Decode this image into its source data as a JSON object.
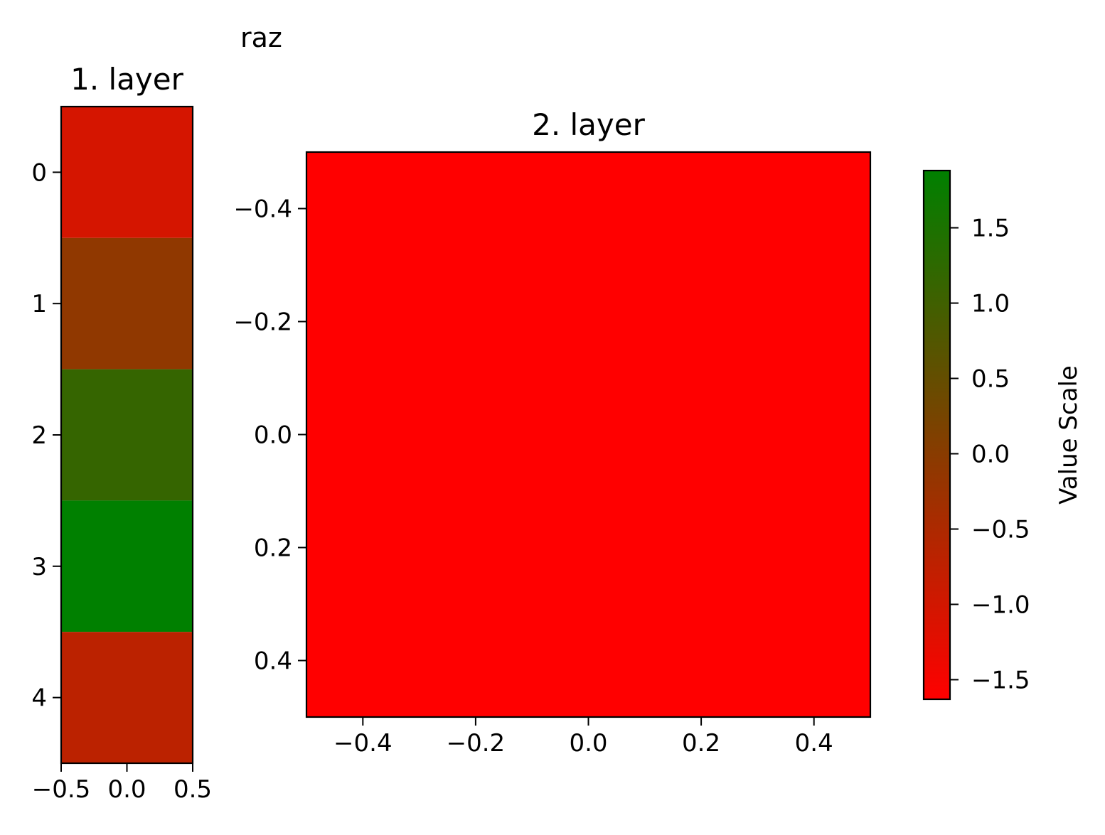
{
  "chart_data": {
    "suptitle": "raz",
    "colormap": {
      "low_color": "#ff0000",
      "high_color": "#008000"
    },
    "panels": [
      {
        "type": "heatmap",
        "title": "1. layer",
        "xlim": [
          -0.5,
          0.5
        ],
        "ylim": [
          4.5,
          -0.5
        ],
        "xticks": [
          -0.5,
          0.0,
          0.5
        ],
        "xtick_labels": [
          "−0.5",
          "0.0",
          "0.5"
        ],
        "yticks": [
          0,
          1,
          2,
          3,
          4
        ],
        "ytick_labels": [
          "0",
          "1",
          "2",
          "3",
          "4"
        ],
        "cells": [
          {
            "row": 0,
            "value": -1.05
          },
          {
            "row": 1,
            "value": -0.1
          },
          {
            "row": 2,
            "value": 1.15
          },
          {
            "row": 3,
            "value": 1.88
          },
          {
            "row": 4,
            "value": -0.7
          }
        ]
      },
      {
        "type": "heatmap",
        "title": "2. layer",
        "xlim": [
          -0.5,
          0.5
        ],
        "ylim": [
          0.5,
          -0.5
        ],
        "xticks": [
          -0.4,
          -0.2,
          0.0,
          0.2,
          0.4
        ],
        "xtick_labels": [
          "−0.4",
          "−0.2",
          "0.0",
          "0.2",
          "0.4"
        ],
        "yticks": [
          -0.4,
          -0.2,
          0.0,
          0.2,
          0.4
        ],
        "ytick_labels": [
          "−0.4",
          "−0.2",
          "0.0",
          "0.2",
          "0.4"
        ],
        "cells": [
          {
            "row": 0,
            "value": -1.63
          }
        ]
      }
    ],
    "colorbar": {
      "label": "Value Scale",
      "vmin": -1.63,
      "vmax": 1.88,
      "ticks": [
        -1.5,
        -1.0,
        -0.5,
        0.0,
        0.5,
        1.0,
        1.5
      ],
      "tick_labels": [
        "−1.5",
        "−1.0",
        "−0.5",
        "0.0",
        "0.5",
        "1.0",
        "1.5"
      ]
    }
  }
}
